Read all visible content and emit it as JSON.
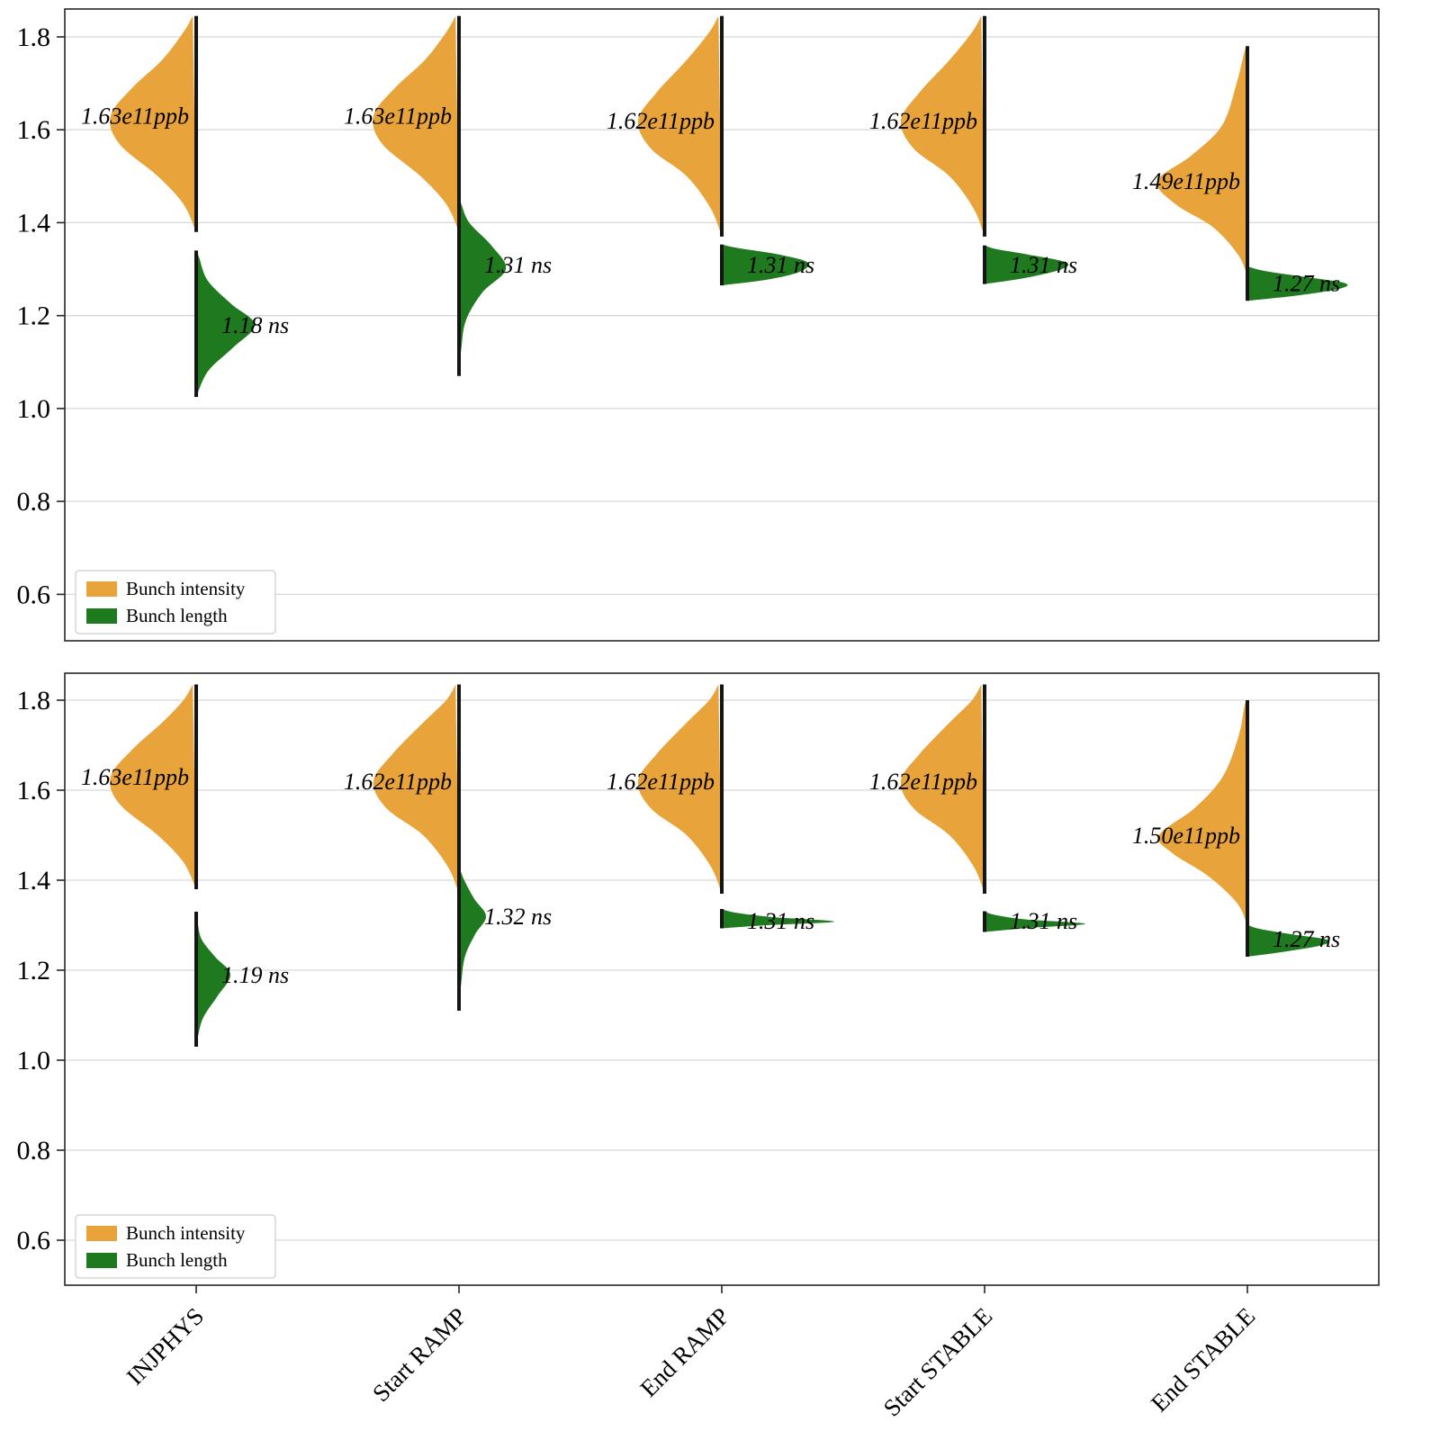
{
  "figure": {
    "background": "#ffffff",
    "border_color": "#262626",
    "grid_color": "#d8d8d8",
    "stem_color": "#151515"
  },
  "chart_data": {
    "type": "violin",
    "orientation": "split-half-violin",
    "title": "",
    "xlabel": "",
    "ylabel": "",
    "categories": [
      "INJPHYS",
      "Start RAMP",
      "End RAMP",
      "Start STABLE",
      "End STABLE"
    ],
    "ylim": [
      0.5,
      1.86
    ],
    "yticks": [
      0.6,
      0.8,
      1.0,
      1.2,
      1.4,
      1.6,
      1.8
    ],
    "grid": true,
    "legend_position": "lower left",
    "series_meta": {
      "intensity": {
        "name": "Bunch intensity",
        "color": "#E8A33B",
        "side": "left",
        "unit": "ppb"
      },
      "length": {
        "name": "Bunch length",
        "color": "#1F7A1F",
        "side": "right",
        "unit": "ns"
      }
    },
    "legend": [
      {
        "series": "intensity",
        "label": "Bunch intensity"
      },
      {
        "series": "length",
        "label": "Bunch length"
      }
    ],
    "panels": [
      {
        "name": "panel-1",
        "violins": [
          {
            "category": "INJPHYS",
            "series": "intensity",
            "label": "1.63e11ppb",
            "value": 1.63,
            "hw": 95,
            "profile": [
              [
                1.38,
                0
              ],
              [
                1.44,
                0.15
              ],
              [
                1.5,
                0.45
              ],
              [
                1.57,
                0.9
              ],
              [
                1.63,
                1.0
              ],
              [
                1.69,
                0.75
              ],
              [
                1.75,
                0.4
              ],
              [
                1.81,
                0.15
              ],
              [
                1.845,
                0.04
              ]
            ]
          },
          {
            "category": "INJPHYS",
            "series": "length",
            "label": "1.18 ns",
            "value": 1.18,
            "hw": 65,
            "profile": [
              [
                1.025,
                0
              ],
              [
                1.08,
                0.2
              ],
              [
                1.13,
                0.62
              ],
              [
                1.18,
                1.0
              ],
              [
                1.225,
                0.6
              ],
              [
                1.275,
                0.2
              ],
              [
                1.325,
                0.05
              ],
              [
                1.34,
                0
              ]
            ]
          },
          {
            "category": "Start RAMP",
            "series": "intensity",
            "label": "1.63e11ppb",
            "value": 1.63,
            "hw": 95,
            "profile": [
              [
                1.38,
                0
              ],
              [
                1.44,
                0.15
              ],
              [
                1.5,
                0.45
              ],
              [
                1.57,
                0.9
              ],
              [
                1.63,
                1.0
              ],
              [
                1.69,
                0.75
              ],
              [
                1.75,
                0.4
              ],
              [
                1.81,
                0.15
              ],
              [
                1.845,
                0.04
              ]
            ]
          },
          {
            "category": "Start RAMP",
            "series": "length",
            "label": "1.31 ns",
            "value": 1.31,
            "hw": 52,
            "profile": [
              [
                1.07,
                0
              ],
              [
                1.13,
                0.05
              ],
              [
                1.19,
                0.15
              ],
              [
                1.25,
                0.5
              ],
              [
                1.3,
                1.0
              ],
              [
                1.35,
                0.7
              ],
              [
                1.4,
                0.22
              ],
              [
                1.44,
                0.05
              ],
              [
                1.455,
                0
              ]
            ]
          },
          {
            "category": "End RAMP",
            "series": "intensity",
            "label": "1.62e11ppb",
            "value": 1.62,
            "hw": 93,
            "profile": [
              [
                1.37,
                0
              ],
              [
                1.43,
                0.13
              ],
              [
                1.5,
                0.42
              ],
              [
                1.56,
                0.85
              ],
              [
                1.62,
                1.0
              ],
              [
                1.68,
                0.78
              ],
              [
                1.75,
                0.42
              ],
              [
                1.81,
                0.15
              ],
              [
                1.845,
                0.04
              ]
            ]
          },
          {
            "category": "End RAMP",
            "series": "length",
            "label": "1.31 ns",
            "value": 1.31,
            "hw": 95,
            "profile": [
              [
                1.265,
                0
              ],
              [
                1.278,
                0.55
              ],
              [
                1.295,
                0.92
              ],
              [
                1.315,
                1.0
              ],
              [
                1.332,
                0.65
              ],
              [
                1.345,
                0.2
              ],
              [
                1.353,
                0
              ]
            ]
          },
          {
            "category": "Start STABLE",
            "series": "intensity",
            "label": "1.62e11ppb",
            "value": 1.62,
            "hw": 93,
            "profile": [
              [
                1.37,
                0
              ],
              [
                1.43,
                0.13
              ],
              [
                1.5,
                0.42
              ],
              [
                1.56,
                0.85
              ],
              [
                1.62,
                1.0
              ],
              [
                1.68,
                0.78
              ],
              [
                1.75,
                0.42
              ],
              [
                1.81,
                0.15
              ],
              [
                1.845,
                0.04
              ]
            ]
          },
          {
            "category": "Start STABLE",
            "series": "length",
            "label": "1.31 ns",
            "value": 1.31,
            "hw": 90,
            "profile": [
              [
                1.268,
                0
              ],
              [
                1.281,
                0.5
              ],
              [
                1.3,
                0.95
              ],
              [
                1.315,
                1.0
              ],
              [
                1.331,
                0.55
              ],
              [
                1.343,
                0.15
              ],
              [
                1.351,
                0
              ]
            ]
          },
          {
            "category": "End STABLE",
            "series": "intensity",
            "label": "1.49e11ppb",
            "value": 1.49,
            "hw": 100,
            "profile": [
              [
                1.285,
                0
              ],
              [
                1.33,
                0.1
              ],
              [
                1.39,
                0.38
              ],
              [
                1.44,
                0.8
              ],
              [
                1.49,
                1.0
              ],
              [
                1.545,
                0.62
              ],
              [
                1.61,
                0.28
              ],
              [
                1.7,
                0.12
              ],
              [
                1.77,
                0.03
              ],
              [
                1.78,
                0
              ]
            ]
          },
          {
            "category": "End STABLE",
            "series": "length",
            "label": "1.27 ns",
            "value": 1.27,
            "hw": 108,
            "profile": [
              [
                1.232,
                0
              ],
              [
                1.243,
                0.5
              ],
              [
                1.258,
                0.95
              ],
              [
                1.27,
                1.0
              ],
              [
                1.283,
                0.6
              ],
              [
                1.296,
                0.18
              ],
              [
                1.306,
                0
              ]
            ]
          }
        ]
      },
      {
        "name": "panel-2",
        "violins": [
          {
            "category": "INJPHYS",
            "series": "intensity",
            "label": "1.63e11ppb",
            "value": 1.63,
            "hw": 95,
            "profile": [
              [
                1.38,
                0
              ],
              [
                1.44,
                0.15
              ],
              [
                1.5,
                0.45
              ],
              [
                1.57,
                0.9
              ],
              [
                1.63,
                1.0
              ],
              [
                1.69,
                0.75
              ],
              [
                1.75,
                0.4
              ],
              [
                1.8,
                0.15
              ],
              [
                1.835,
                0.04
              ]
            ]
          },
          {
            "category": "INJPHYS",
            "series": "length",
            "label": "1.19 ns",
            "value": 1.19,
            "hw": 38,
            "profile": [
              [
                1.03,
                0
              ],
              [
                1.09,
                0.18
              ],
              [
                1.14,
                0.6
              ],
              [
                1.19,
                1.0
              ],
              [
                1.23,
                0.55
              ],
              [
                1.27,
                0.15
              ],
              [
                1.315,
                0.03
              ],
              [
                1.33,
                0
              ]
            ]
          },
          {
            "category": "Start RAMP",
            "series": "intensity",
            "label": "1.62e11ppb",
            "value": 1.62,
            "hw": 95,
            "profile": [
              [
                1.37,
                0
              ],
              [
                1.43,
                0.13
              ],
              [
                1.5,
                0.42
              ],
              [
                1.56,
                0.85
              ],
              [
                1.62,
                1.0
              ],
              [
                1.68,
                0.78
              ],
              [
                1.75,
                0.42
              ],
              [
                1.8,
                0.15
              ],
              [
                1.835,
                0.04
              ]
            ]
          },
          {
            "category": "Start RAMP",
            "series": "length",
            "label": "1.32 ns",
            "value": 1.32,
            "hw": 30,
            "profile": [
              [
                1.11,
                0
              ],
              [
                1.17,
                0.08
              ],
              [
                1.23,
                0.22
              ],
              [
                1.28,
                0.6
              ],
              [
                1.32,
                1.0
              ],
              [
                1.36,
                0.55
              ],
              [
                1.41,
                0.12
              ],
              [
                1.44,
                0
              ]
            ]
          },
          {
            "category": "End RAMP",
            "series": "intensity",
            "label": "1.62e11ppb",
            "value": 1.62,
            "hw": 93,
            "profile": [
              [
                1.37,
                0
              ],
              [
                1.43,
                0.13
              ],
              [
                1.5,
                0.42
              ],
              [
                1.56,
                0.85
              ],
              [
                1.62,
                1.0
              ],
              [
                1.68,
                0.78
              ],
              [
                1.75,
                0.42
              ],
              [
                1.8,
                0.15
              ],
              [
                1.835,
                0.04
              ]
            ]
          },
          {
            "category": "End RAMP",
            "series": "length",
            "label": "1.31 ns",
            "value": 1.31,
            "hw": 125,
            "profile": [
              [
                1.293,
                0
              ],
              [
                1.3,
                0.4
              ],
              [
                1.308,
                1.0
              ],
              [
                1.318,
                0.45
              ],
              [
                1.328,
                0.12
              ],
              [
                1.336,
                0
              ]
            ]
          },
          {
            "category": "Start STABLE",
            "series": "intensity",
            "label": "1.62e11ppb",
            "value": 1.62,
            "hw": 93,
            "profile": [
              [
                1.37,
                0
              ],
              [
                1.43,
                0.13
              ],
              [
                1.5,
                0.42
              ],
              [
                1.56,
                0.85
              ],
              [
                1.62,
                1.0
              ],
              [
                1.68,
                0.78
              ],
              [
                1.75,
                0.42
              ],
              [
                1.8,
                0.15
              ],
              [
                1.835,
                0.04
              ]
            ]
          },
          {
            "category": "Start STABLE",
            "series": "length",
            "label": "1.31 ns",
            "value": 1.31,
            "hw": 112,
            "profile": [
              [
                1.285,
                0
              ],
              [
                1.294,
                0.45
              ],
              [
                1.303,
                1.0
              ],
              [
                1.313,
                0.4
              ],
              [
                1.323,
                0.1
              ],
              [
                1.331,
                0
              ]
            ]
          },
          {
            "category": "End STABLE",
            "series": "intensity",
            "label": "1.50e11ppb",
            "value": 1.5,
            "hw": 98,
            "profile": [
              [
                1.3,
                0
              ],
              [
                1.35,
                0.12
              ],
              [
                1.41,
                0.45
              ],
              [
                1.46,
                0.85
              ],
              [
                1.5,
                1.0
              ],
              [
                1.56,
                0.6
              ],
              [
                1.63,
                0.28
              ],
              [
                1.72,
                0.1
              ],
              [
                1.79,
                0.03
              ],
              [
                1.8,
                0
              ]
            ]
          },
          {
            "category": "End STABLE",
            "series": "length",
            "label": "1.27 ns",
            "value": 1.27,
            "hw": 88,
            "profile": [
              [
                1.23,
                0
              ],
              [
                1.242,
                0.5
              ],
              [
                1.256,
                0.95
              ],
              [
                1.268,
                1.0
              ],
              [
                1.28,
                0.55
              ],
              [
                1.292,
                0.15
              ],
              [
                1.301,
                0
              ]
            ]
          }
        ]
      }
    ]
  }
}
